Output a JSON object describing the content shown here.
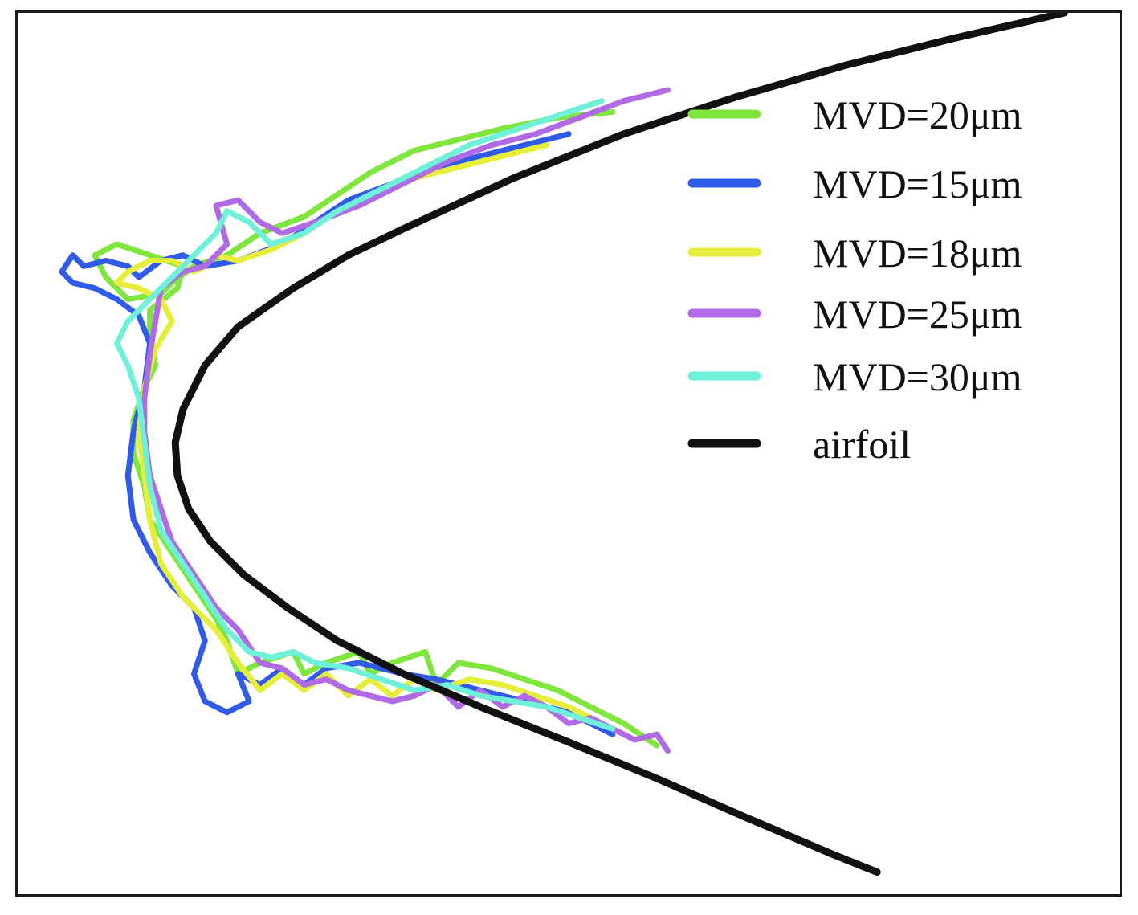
{
  "chart_data": {
    "type": "line",
    "title": "",
    "xlabel": "",
    "ylabel": "",
    "grid": false,
    "axes_visible": false,
    "legend_position": "top-right",
    "xlim": [
      0,
      100
    ],
    "ylim": [
      0,
      80
    ],
    "series": [
      {
        "name": "MVD=20μm",
        "color": "#7ee63c",
        "points": [
          [
            54,
            71
          ],
          [
            49,
            70.5
          ],
          [
            44,
            69.5
          ],
          [
            40,
            68.5
          ],
          [
            36,
            67.5
          ],
          [
            32,
            65.5
          ],
          [
            29,
            63.5
          ],
          [
            26,
            61.5
          ],
          [
            22,
            60
          ],
          [
            19,
            58
          ],
          [
            16,
            57
          ],
          [
            14,
            55.5
          ],
          [
            13,
            54.5
          ],
          [
            10,
            54
          ],
          [
            8,
            56
          ],
          [
            7,
            58
          ],
          [
            9,
            59
          ],
          [
            12,
            58
          ],
          [
            15,
            57
          ],
          [
            14.5,
            55
          ],
          [
            12,
            53
          ],
          [
            12,
            51
          ],
          [
            12.5,
            48
          ],
          [
            11.5,
            46
          ],
          [
            10.5,
            43
          ],
          [
            10.5,
            40
          ],
          [
            11.5,
            37
          ],
          [
            12,
            34
          ],
          [
            14,
            31
          ],
          [
            16,
            28
          ],
          [
            18,
            25
          ],
          [
            19,
            23
          ],
          [
            20,
            20
          ],
          [
            22,
            21
          ],
          [
            25,
            22
          ],
          [
            26,
            20
          ],
          [
            28,
            21
          ],
          [
            31,
            22
          ],
          [
            32,
            20
          ],
          [
            34,
            21
          ],
          [
            37,
            22
          ],
          [
            38,
            19
          ],
          [
            40,
            21
          ],
          [
            43,
            20.5
          ],
          [
            46,
            19.5
          ],
          [
            49,
            18.5
          ],
          [
            52,
            17
          ],
          [
            55,
            15.5
          ],
          [
            58,
            13.5
          ]
        ]
      },
      {
        "name": "MVD=15μm",
        "color": "#2f5be8",
        "points": [
          [
            50,
            69
          ],
          [
            46,
            68
          ],
          [
            42,
            67
          ],
          [
            38,
            66
          ],
          [
            34,
            64.5
          ],
          [
            30,
            63
          ],
          [
            27,
            61
          ],
          [
            24,
            59
          ],
          [
            20,
            57.5
          ],
          [
            17,
            57
          ],
          [
            15,
            58
          ],
          [
            13,
            57.5
          ],
          [
            11,
            56
          ],
          [
            10,
            57
          ],
          [
            8,
            57.5
          ],
          [
            6,
            57
          ],
          [
            5,
            58
          ],
          [
            4,
            56.5
          ],
          [
            5,
            55.5
          ],
          [
            7,
            55
          ],
          [
            9,
            54
          ],
          [
            11,
            52.5
          ],
          [
            12,
            50
          ],
          [
            11.5,
            46
          ],
          [
            10.5,
            42
          ],
          [
            10,
            38
          ],
          [
            10.5,
            34
          ],
          [
            12,
            31
          ],
          [
            14,
            28
          ],
          [
            16,
            26
          ],
          [
            17,
            23
          ],
          [
            16,
            20
          ],
          [
            17,
            17.5
          ],
          [
            19,
            16.5
          ],
          [
            21,
            17.5
          ],
          [
            20,
            20
          ],
          [
            22,
            19
          ],
          [
            24,
            20.5
          ],
          [
            26,
            19
          ],
          [
            28,
            20.5
          ],
          [
            31,
            21
          ],
          [
            35,
            20
          ],
          [
            38,
            19.5
          ],
          [
            42,
            18.5
          ],
          [
            46,
            17.5
          ],
          [
            50,
            16.5
          ],
          [
            54,
            14.5
          ]
        ]
      },
      {
        "name": "MVD=18μm",
        "color": "#e6ee3a",
        "points": [
          [
            48,
            68
          ],
          [
            44,
            67
          ],
          [
            40,
            66
          ],
          [
            36,
            65
          ],
          [
            32,
            63.5
          ],
          [
            29,
            62
          ],
          [
            26,
            60
          ],
          [
            23,
            58.5
          ],
          [
            20,
            57.5
          ],
          [
            18,
            58
          ],
          [
            17,
            57
          ],
          [
            16,
            56.5
          ],
          [
            14,
            57.5
          ],
          [
            12,
            57.5
          ],
          [
            10,
            56.5
          ],
          [
            9,
            55.5
          ],
          [
            11,
            55
          ],
          [
            13,
            54
          ],
          [
            14,
            52
          ],
          [
            12.5,
            49.5
          ],
          [
            11.5,
            46
          ],
          [
            11,
            42
          ],
          [
            11.5,
            38
          ],
          [
            12,
            34
          ],
          [
            13,
            30
          ],
          [
            15,
            27
          ],
          [
            18,
            24
          ],
          [
            20,
            21
          ],
          [
            22,
            18.5
          ],
          [
            24,
            20
          ],
          [
            26,
            18.5
          ],
          [
            28,
            20
          ],
          [
            30,
            18
          ],
          [
            32,
            19.5
          ],
          [
            34,
            18
          ],
          [
            36,
            19.5
          ],
          [
            38,
            18.5
          ],
          [
            41,
            19.5
          ],
          [
            44,
            19
          ],
          [
            47,
            18
          ],
          [
            50,
            17
          ],
          [
            54,
            15
          ]
        ]
      },
      {
        "name": "MVD=25μm",
        "color": "#b06ae6",
        "points": [
          [
            59,
            73
          ],
          [
            55,
            72
          ],
          [
            51,
            70.5
          ],
          [
            47,
            69
          ],
          [
            43,
            68
          ],
          [
            39,
            66.5
          ],
          [
            35,
            64.5
          ],
          [
            31,
            62.5
          ],
          [
            27,
            61
          ],
          [
            24,
            60
          ],
          [
            22,
            61
          ],
          [
            20,
            63
          ],
          [
            18,
            62.5
          ],
          [
            19,
            59
          ],
          [
            17,
            57
          ],
          [
            15,
            56.5
          ],
          [
            13,
            55
          ],
          [
            12.5,
            52
          ],
          [
            12,
            49
          ],
          [
            11.5,
            45
          ],
          [
            11.5,
            42
          ],
          [
            12,
            38
          ],
          [
            13,
            35
          ],
          [
            14,
            32
          ],
          [
            16,
            29
          ],
          [
            18,
            26
          ],
          [
            20,
            24
          ],
          [
            22,
            21
          ],
          [
            24,
            20.5
          ],
          [
            26,
            19
          ],
          [
            28,
            19.5
          ],
          [
            30,
            18.5
          ],
          [
            32,
            18
          ],
          [
            34,
            17.5
          ],
          [
            36,
            18
          ],
          [
            38,
            19
          ],
          [
            40,
            17
          ],
          [
            42,
            18.5
          ],
          [
            44,
            17
          ],
          [
            46,
            18
          ],
          [
            48,
            17
          ],
          [
            50,
            15.5
          ],
          [
            52,
            16
          ],
          [
            54,
            15
          ],
          [
            56,
            14
          ],
          [
            58,
            14.5
          ],
          [
            59,
            13
          ]
        ]
      },
      {
        "name": "MVD=30μm",
        "color": "#6ff0d8",
        "points": [
          [
            53,
            72
          ],
          [
            50,
            71
          ],
          [
            47,
            70
          ],
          [
            44,
            69
          ],
          [
            41,
            68
          ],
          [
            38,
            66.5
          ],
          [
            35,
            65
          ],
          [
            32,
            63.5
          ],
          [
            29,
            62
          ],
          [
            26,
            60
          ],
          [
            23,
            59
          ],
          [
            21,
            61
          ],
          [
            19,
            62
          ],
          [
            18,
            60
          ],
          [
            16,
            58
          ],
          [
            14,
            56
          ],
          [
            12,
            54
          ],
          [
            10,
            52
          ],
          [
            9,
            50
          ],
          [
            10,
            48
          ],
          [
            11,
            45
          ],
          [
            11.5,
            41
          ],
          [
            12,
            37
          ],
          [
            13,
            33
          ],
          [
            15,
            30
          ],
          [
            17,
            27
          ],
          [
            19,
            24
          ],
          [
            21,
            22
          ],
          [
            23,
            21.5
          ],
          [
            25,
            22
          ],
          [
            27,
            21
          ],
          [
            30,
            20.5
          ],
          [
            33,
            19.5
          ],
          [
            36,
            18.5
          ],
          [
            39,
            19
          ],
          [
            42,
            18
          ],
          [
            45,
            17.5
          ],
          [
            48,
            17
          ],
          [
            51,
            16
          ],
          [
            54,
            15
          ]
        ]
      },
      {
        "name": "airfoil",
        "color": "#111111",
        "points": [
          [
            95,
            80
          ],
          [
            85,
            77.7
          ],
          [
            75,
            75.2
          ],
          [
            65,
            72.3
          ],
          [
            55,
            69
          ],
          [
            45,
            65
          ],
          [
            35,
            60.4
          ],
          [
            30,
            58
          ],
          [
            25,
            55
          ],
          [
            20,
            51.5
          ],
          [
            17,
            48
          ],
          [
            15,
            44
          ],
          [
            14.3,
            41
          ],
          [
            14.5,
            38
          ],
          [
            15.5,
            35
          ],
          [
            17.5,
            32
          ],
          [
            20.5,
            29
          ],
          [
            24.5,
            26
          ],
          [
            29,
            23
          ],
          [
            35,
            20
          ],
          [
            42,
            17
          ],
          [
            50,
            13.8
          ],
          [
            58,
            10.5
          ],
          [
            66,
            7
          ],
          [
            74,
            3.6
          ],
          [
            78,
            2
          ]
        ]
      }
    ]
  }
}
